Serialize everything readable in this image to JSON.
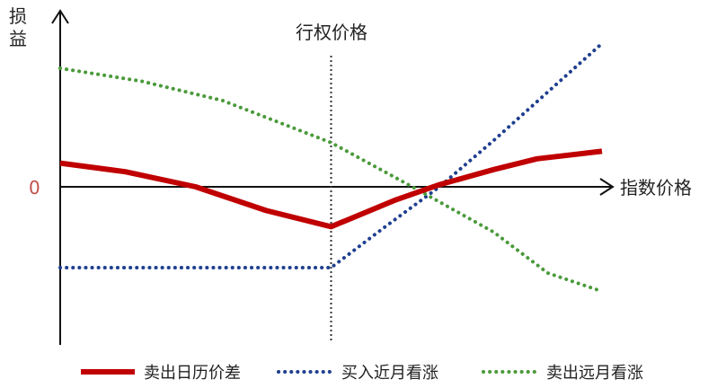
{
  "chart_data": {
    "type": "line",
    "ylabel_line1": "损",
    "ylabel_line2": "益",
    "xlabel": "指数价格",
    "zero_label": "0",
    "strike_label": "行权价格",
    "xlim": [
      0,
      100
    ],
    "ylim": [
      -100,
      100
    ],
    "strike_x": 50,
    "series": [
      {
        "name": "卖出日历价差",
        "color": "#c00000",
        "style": "solid",
        "x": [
          0,
          12,
          25,
          38,
          50,
          62,
          70,
          80,
          88,
          100
        ],
        "y": [
          22,
          14,
          0,
          -22,
          -37,
          -12,
          2,
          16,
          26,
          33
        ]
      },
      {
        "name": "买入近月看涨",
        "color": "#1f3f8f",
        "style": "dotted",
        "x": [
          0,
          25,
          50,
          60,
          70,
          80,
          90,
          100
        ],
        "y": [
          -75,
          -75,
          -75,
          -37,
          0,
          43,
          88,
          133
        ]
      },
      {
        "name": "卖出远月看涨",
        "color": "#4a9a3a",
        "style": "dotted",
        "x": [
          0,
          15,
          30,
          50,
          65,
          80,
          90,
          100
        ],
        "y": [
          110,
          98,
          80,
          41,
          0,
          -42,
          -80,
          -97
        ]
      }
    ],
    "grid": false,
    "legend_position": "bottom"
  }
}
